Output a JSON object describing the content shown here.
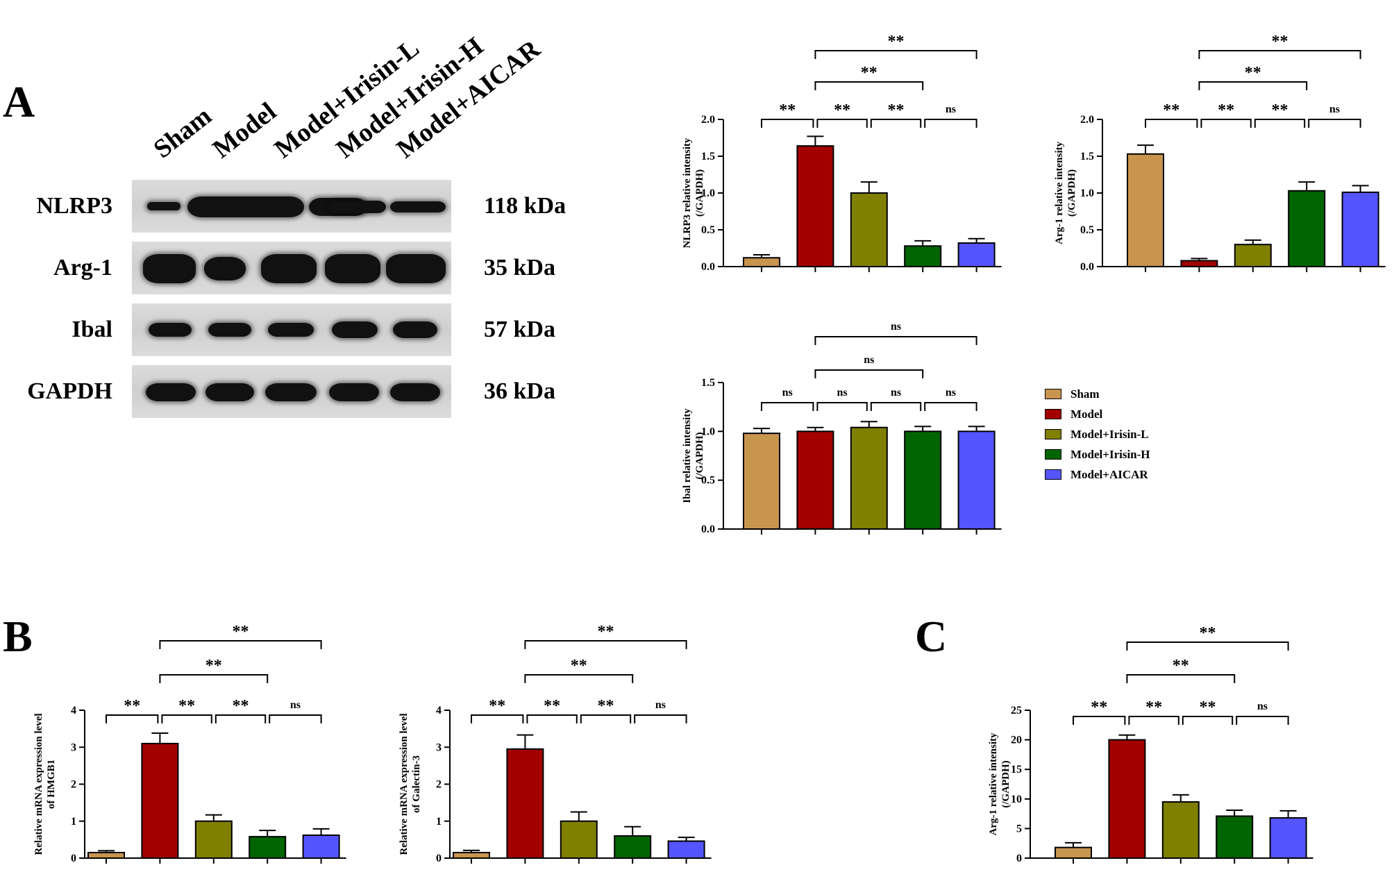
{
  "panel_labels": {
    "a": "A",
    "b": "B",
    "c": "C"
  },
  "blot": {
    "lanes": [
      "Sham",
      "Model",
      "Model+Irisin-L",
      "Model+Irisin-H",
      "Model+AICAR"
    ],
    "rows": [
      {
        "name": "NLRP3",
        "kda": "118 kDa"
      },
      {
        "name": "Arg-1",
        "kda": "35 kDa"
      },
      {
        "name": "Ibal",
        "kda": "57 kDa"
      },
      {
        "name": "GAPDH",
        "kda": "36 kDa"
      }
    ]
  },
  "legend": {
    "items": [
      {
        "label": "Sham",
        "color": "#C8954F"
      },
      {
        "label": "Model",
        "color": "#A30000"
      },
      {
        "label": "Model+Irisin-L",
        "color": "#7F7F00"
      },
      {
        "label": "Model+Irisin-H",
        "color": "#006400"
      },
      {
        "label": "Model+AICAR",
        "color": "#5555FF"
      }
    ]
  },
  "chart_data": [
    {
      "id": "nlrp3",
      "type": "bar",
      "ylabel": "NLRP3 relative intensity",
      "ylabel2": "(/GAPDH)",
      "ylim": [
        0,
        2.0
      ],
      "yticks": [
        "0.0",
        "0.5",
        "1.0",
        "1.5",
        "2.0"
      ],
      "categories": [
        "Sham",
        "Model",
        "Model+Irisin-L",
        "Model+Irisin-H",
        "Model+AICAR"
      ],
      "values": [
        0.12,
        1.64,
        1.0,
        0.28,
        0.32
      ],
      "errors": [
        0.04,
        0.13,
        0.15,
        0.07,
        0.06
      ],
      "comparisons": [
        {
          "from": 0,
          "to": 1,
          "label": "**"
        },
        {
          "from": 2,
          "to": 3,
          "label": "**"
        },
        {
          "from": 3,
          "to": 4,
          "label": "ns"
        },
        {
          "from": 1,
          "to": 2,
          "label": "**"
        },
        {
          "from": 1,
          "to": 3,
          "label": "**"
        },
        {
          "from": 1,
          "to": 4,
          "label": "**"
        }
      ]
    },
    {
      "id": "arg1-protein",
      "type": "bar",
      "ylabel": "Arg-1 relative intensity",
      "ylabel2": "(/GAPDH)",
      "ylim": [
        0,
        2.0
      ],
      "yticks": [
        "0.0",
        "0.5",
        "1.0",
        "1.5",
        "2.0"
      ],
      "categories": [
        "Sham",
        "Model",
        "Model+Irisin-L",
        "Model+Irisin-H",
        "Model+AICAR"
      ],
      "values": [
        1.53,
        0.08,
        0.3,
        1.03,
        1.01
      ],
      "errors": [
        0.12,
        0.03,
        0.06,
        0.12,
        0.09
      ],
      "comparisons": [
        {
          "from": 0,
          "to": 1,
          "label": "**"
        },
        {
          "from": 1,
          "to": 2,
          "label": "**"
        },
        {
          "from": 2,
          "to": 3,
          "label": "**"
        },
        {
          "from": 3,
          "to": 4,
          "label": "ns"
        },
        {
          "from": 1,
          "to": 3,
          "label": "**"
        },
        {
          "from": 1,
          "to": 4,
          "label": "**"
        }
      ]
    },
    {
      "id": "ibal",
      "type": "bar",
      "ylabel": "Ibal relative intensity",
      "ylabel2": "(/GAPDH)",
      "ylim": [
        0,
        1.5
      ],
      "yticks": [
        "0.0",
        "0.5",
        "1.0",
        "1.5"
      ],
      "categories": [
        "Sham",
        "Model",
        "Model+Irisin-L",
        "Model+Irisin-H",
        "Model+AICAR"
      ],
      "values": [
        0.98,
        1.0,
        1.04,
        1.0,
        1.0
      ],
      "errors": [
        0.05,
        0.04,
        0.06,
        0.05,
        0.05
      ],
      "comparisons": [
        {
          "from": 0,
          "to": 1,
          "label": "ns"
        },
        {
          "from": 1,
          "to": 2,
          "label": "ns"
        },
        {
          "from": 2,
          "to": 3,
          "label": "ns"
        },
        {
          "from": 3,
          "to": 4,
          "label": "ns"
        },
        {
          "from": 1,
          "to": 3,
          "label": "ns"
        },
        {
          "from": 1,
          "to": 4,
          "label": "ns"
        }
      ]
    },
    {
      "id": "hmgb1",
      "type": "bar",
      "ylabel": "Relative mRNA expression level",
      "ylabel2": "of HMGB1",
      "ylim": [
        0,
        4
      ],
      "yticks": [
        "0",
        "1",
        "2",
        "3",
        "4"
      ],
      "categories": [
        "Sham",
        "Model",
        "Model+Irisin-L",
        "Model+Irisin-H",
        "Model+AICAR"
      ],
      "values": [
        0.15,
        3.1,
        1.0,
        0.58,
        0.62
      ],
      "errors": [
        0.05,
        0.28,
        0.17,
        0.17,
        0.17
      ],
      "comparisons": [
        {
          "from": 0,
          "to": 1,
          "label": "**"
        },
        {
          "from": 2,
          "to": 3,
          "label": "**"
        },
        {
          "from": 3,
          "to": 4,
          "label": "ns"
        },
        {
          "from": 1,
          "to": 2,
          "label": "**"
        },
        {
          "from": 1,
          "to": 3,
          "label": "**"
        },
        {
          "from": 1,
          "to": 4,
          "label": "**"
        }
      ]
    },
    {
      "id": "galectin3",
      "type": "bar",
      "ylabel": "Relative mRNA expression level",
      "ylabel2": "of Galectin-3",
      "ylim": [
        0,
        4
      ],
      "yticks": [
        "0",
        "1",
        "2",
        "3",
        "4"
      ],
      "categories": [
        "Sham",
        "Model",
        "Model+Irisin-L",
        "Model+Irisin-H",
        "Model+AICAR"
      ],
      "values": [
        0.15,
        2.95,
        1.0,
        0.6,
        0.46
      ],
      "errors": [
        0.06,
        0.38,
        0.25,
        0.25,
        0.1
      ],
      "comparisons": [
        {
          "from": 0,
          "to": 1,
          "label": "**"
        },
        {
          "from": 2,
          "to": 3,
          "label": "**"
        },
        {
          "from": 3,
          "to": 4,
          "label": "ns"
        },
        {
          "from": 1,
          "to": 2,
          "label": "**"
        },
        {
          "from": 1,
          "to": 3,
          "label": "**"
        },
        {
          "from": 1,
          "to": 4,
          "label": "**"
        }
      ]
    },
    {
      "id": "arg1-mrna",
      "type": "bar",
      "ylabel": "Arg-1 relative intensity",
      "ylabel2": "(/GAPDH)",
      "ylim": [
        0,
        25
      ],
      "yticks": [
        "0",
        "5",
        "10",
        "15",
        "20",
        "25"
      ],
      "categories": [
        "Sham",
        "Model",
        "Model+Irisin-L",
        "Model+Irisin-H",
        "Model+AICAR"
      ],
      "values": [
        1.8,
        20.0,
        9.5,
        7.1,
        6.8
      ],
      "errors": [
        0.8,
        0.8,
        1.2,
        1.0,
        1.2
      ],
      "comparisons": [
        {
          "from": 0,
          "to": 1,
          "label": "**"
        },
        {
          "from": 2,
          "to": 3,
          "label": "**"
        },
        {
          "from": 3,
          "to": 4,
          "label": "ns"
        },
        {
          "from": 1,
          "to": 2,
          "label": "**"
        },
        {
          "from": 1,
          "to": 3,
          "label": "**"
        },
        {
          "from": 1,
          "to": 4,
          "label": "**"
        }
      ]
    }
  ]
}
